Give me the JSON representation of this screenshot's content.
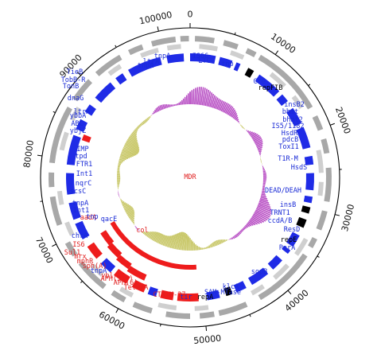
{
  "plasmid": {
    "total_bp": 103500,
    "colors": {
      "backbone": "#000000",
      "gene_blue": "#1f2be6",
      "gene_red": "#ee1c1c",
      "gene_black": "#000000",
      "label_blue": "#1a2bd6",
      "label_red": "#e02020",
      "label_black": "#000000",
      "outer_gray": "#a8a8a8",
      "outer_gray_light": "#cfcfcf",
      "gc_skew_pos": "#b84fc4",
      "gc_skew_neg": "#c9c86a"
    },
    "ticks": [
      {
        "pos": 0,
        "label": "0"
      },
      {
        "pos": 10000,
        "label": "10000"
      },
      {
        "pos": 20000,
        "label": "20000"
      },
      {
        "pos": 30000,
        "label": "30000"
      },
      {
        "pos": 40000,
        "label": "40000"
      },
      {
        "pos": 50000,
        "label": "50000"
      },
      {
        "pos": 60000,
        "label": "60000"
      },
      {
        "pos": 70000,
        "label": "70000"
      },
      {
        "pos": 80000,
        "label": "80000"
      },
      {
        "pos": 90000,
        "label": "90000"
      },
      {
        "pos": 100000,
        "label": "100000"
      }
    ],
    "gene_labels": [
      {
        "text": "IS66",
        "color": "blue"
      },
      {
        "text": "LTC",
        "color": "blue"
      },
      {
        "text": "tnp",
        "color": "blue"
      },
      {
        "text": "tnpA",
        "color": "blue"
      },
      {
        "text": "ltrA",
        "color": "blue"
      },
      {
        "text": "tnpA",
        "color": "blue"
      },
      {
        "text": "TieB",
        "color": "blue"
      },
      {
        "text": "TobB-R",
        "color": "blue"
      },
      {
        "text": "TonB",
        "color": "blue"
      },
      {
        "text": "dnaG",
        "color": "blue"
      },
      {
        "text": "Cre",
        "color": "blue"
      },
      {
        "text": "repFIB",
        "color": "black"
      },
      {
        "text": "insB2",
        "color": "blue"
      },
      {
        "text": "bhmt",
        "color": "blue"
      },
      {
        "text": "bhmt2",
        "color": "blue"
      },
      {
        "text": "IS5/1182",
        "color": "blue"
      },
      {
        "text": "HsdR",
        "color": "blue"
      },
      {
        "text": "pdcB",
        "color": "blue"
      },
      {
        "text": "ToxI1",
        "color": "blue"
      },
      {
        "text": "T1R-M",
        "color": "blue"
      },
      {
        "text": "HsdS",
        "color": "blue"
      },
      {
        "text": "DEAD/DEAH",
        "color": "blue"
      },
      {
        "text": "insB",
        "color": "blue"
      },
      {
        "text": "TRNT1",
        "color": "blue"
      },
      {
        "text": "ccdA/B",
        "color": "blue"
      },
      {
        "text": "ResD",
        "color": "blue"
      },
      {
        "text": "repE",
        "color": "black"
      },
      {
        "text": "ParA",
        "color": "blue"
      },
      {
        "text": "sopB",
        "color": "blue"
      },
      {
        "text": "klcA",
        "color": "blue"
      },
      {
        "text": "SAM-MTase",
        "color": "blue"
      },
      {
        "text": "repA",
        "color": "black"
      },
      {
        "text": "tir",
        "color": "blue"
      },
      {
        "text": "CTX-M-27",
        "color": "red"
      },
      {
        "text": "TetR/A",
        "color": "red"
      },
      {
        "text": "APH(6)",
        "color": "red"
      },
      {
        "text": "APH(3'')",
        "color": "red"
      },
      {
        "text": "ybl",
        "color": "red"
      },
      {
        "text": "tnpA",
        "color": "blue"
      },
      {
        "text": "sph(A)",
        "color": "red"
      },
      {
        "text": "mphR",
        "color": "red"
      },
      {
        "text": "mrx",
        "color": "red"
      },
      {
        "text": "IS6",
        "color": "red"
      },
      {
        "text": "Sul1",
        "color": "red"
      },
      {
        "text": "chrA",
        "color": "blue"
      },
      {
        "text": "qacE",
        "color": "blue"
      },
      {
        "text": "aadA",
        "color": "red"
      },
      {
        "text": "Int1",
        "color": "blue"
      },
      {
        "text": "tnpA",
        "color": "blue"
      },
      {
        "text": "scsC",
        "color": "blue"
      },
      {
        "text": "nqrC",
        "color": "blue"
      },
      {
        "text": "Int1",
        "color": "blue"
      },
      {
        "text": "FTR1",
        "color": "blue"
      },
      {
        "text": "tpd",
        "color": "blue"
      },
      {
        "text": "IMP",
        "color": "blue"
      },
      {
        "text": "ybjZ",
        "color": "blue"
      },
      {
        "text": "ABC",
        "color": "blue"
      },
      {
        "text": "ybbA",
        "color": "blue"
      },
      {
        "text": "ltrA",
        "color": "blue"
      },
      {
        "text": "tnp",
        "color": "blue"
      },
      {
        "text": "col",
        "color": "red"
      },
      {
        "text": "MDR",
        "color": "red"
      }
    ]
  }
}
